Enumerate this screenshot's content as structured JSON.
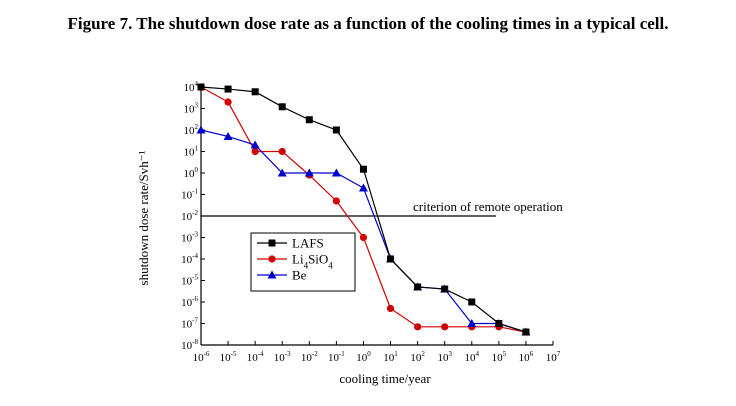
{
  "figure_title": "Figure 7. The shutdown dose rate as a function of the cooling times in a typical cell.",
  "chart_data": {
    "type": "line",
    "title": "",
    "xlabel": "cooling time/year",
    "ylabel": "shutdown dose rate/Svh⁻¹",
    "xscale": "log",
    "yscale": "log",
    "xlim_exp": [
      -6,
      7
    ],
    "ylim_exp": [
      -8,
      4
    ],
    "x_ticks": [
      {
        "base": "10",
        "exp": "-6"
      },
      {
        "base": "10",
        "exp": "-5"
      },
      {
        "base": "10",
        "exp": "-4"
      },
      {
        "base": "10",
        "exp": "-3"
      },
      {
        "base": "10",
        "exp": "-2"
      },
      {
        "base": "10",
        "exp": "-1"
      },
      {
        "base": "10",
        "exp": "0"
      },
      {
        "base": "10",
        "exp": "1"
      },
      {
        "base": "10",
        "exp": "2"
      },
      {
        "base": "10",
        "exp": "3"
      },
      {
        "base": "10",
        "exp": "4"
      },
      {
        "base": "10",
        "exp": "5"
      },
      {
        "base": "10",
        "exp": "6"
      },
      {
        "base": "10",
        "exp": "7"
      }
    ],
    "y_ticks": [
      {
        "base": "10",
        "exp": "4"
      },
      {
        "base": "10",
        "exp": "3"
      },
      {
        "base": "10",
        "exp": "2"
      },
      {
        "base": "10",
        "exp": "1"
      },
      {
        "base": "10",
        "exp": "0"
      },
      {
        "base": "10",
        "exp": "-1"
      },
      {
        "base": "10",
        "exp": "-2"
      },
      {
        "base": "10",
        "exp": "-3"
      },
      {
        "base": "10",
        "exp": "-4"
      },
      {
        "base": "10",
        "exp": "-5"
      },
      {
        "base": "10",
        "exp": "-6"
      },
      {
        "base": "10",
        "exp": "-7"
      },
      {
        "base": "10",
        "exp": "-8"
      }
    ],
    "reference_line": {
      "label": "criterion of remote operation",
      "y": 0.01
    },
    "legend": {
      "placement": "center-left",
      "entries": [
        "LAFS",
        "Li4SiO4",
        "Be"
      ]
    },
    "series": [
      {
        "name": "LAFS",
        "color": "#000000",
        "marker": "square",
        "x": [
          1e-06,
          1e-05,
          0.0001,
          0.001,
          0.01,
          0.1,
          1,
          10,
          100,
          1000,
          10000,
          100000,
          1000000
        ],
        "y": [
          10000,
          8000,
          6000,
          1200,
          300,
          100,
          1.5,
          0.0001,
          5e-06,
          4e-06,
          1e-06,
          1e-07,
          4e-08
        ]
      },
      {
        "name": "Li4SiO4",
        "color": "#d00000",
        "marker": "circle",
        "x": [
          1e-06,
          1e-05,
          0.0001,
          0.001,
          0.01,
          0.1,
          1,
          10,
          100,
          1000,
          10000,
          100000,
          1000000
        ],
        "y": [
          10000,
          2000,
          10,
          10,
          0.8,
          0.05,
          0.001,
          5e-07,
          7e-08,
          7e-08,
          7e-08,
          7e-08,
          4e-08
        ]
      },
      {
        "name": "Be",
        "color": "#0000cc",
        "marker": "triangle",
        "x": [
          1e-06,
          1e-05,
          0.0001,
          0.001,
          0.01,
          0.1,
          1,
          10,
          100,
          1000,
          10000,
          100000,
          1000000
        ],
        "y": [
          100,
          50,
          20,
          1,
          1,
          1,
          0.2,
          0.0001,
          5e-06,
          4e-06,
          1e-07,
          1e-07,
          4e-08
        ]
      }
    ]
  }
}
